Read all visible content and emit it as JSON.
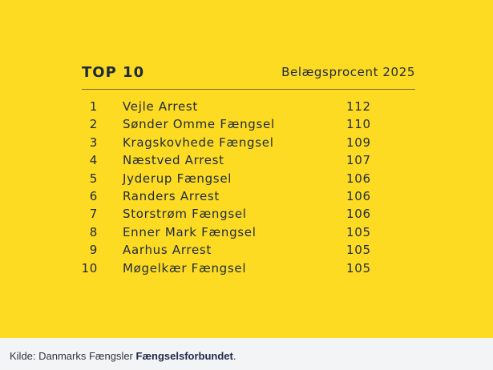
{
  "chart_data": {
    "type": "table",
    "title": "TOP 10",
    "column_header": "Belægsprocent 2025",
    "rows": [
      {
        "rank": "1",
        "name": "Vejle Arrest",
        "value": 112
      },
      {
        "rank": "2",
        "name": "Sønder Omme Fængsel",
        "value": 110
      },
      {
        "rank": "3",
        "name": "Kragskovhede Fængsel",
        "value": 109
      },
      {
        "rank": "4",
        "name": "Næstved Arrest",
        "value": 107
      },
      {
        "rank": "5",
        "name": "Jyderup Fængsel",
        "value": 106
      },
      {
        "rank": "6",
        "name": "Randers Arrest",
        "value": 106
      },
      {
        "rank": "7",
        "name": "Storstrøm Fængsel",
        "value": 106
      },
      {
        "rank": "8",
        "name": "Enner Mark Fængsel",
        "value": 105
      },
      {
        "rank": "9",
        "name": "Aarhus Arrest",
        "value": 105
      },
      {
        "rank": "10",
        "name": "Møgelkær Fængsel",
        "value": 105
      }
    ]
  },
  "caption": {
    "prefix": "Kilde: Danmarks Fængsler",
    "credit": "Fængselsforbundet",
    "suffix": "."
  },
  "colors": {
    "background": "#FDDB22",
    "text": "#1f2a3a"
  }
}
